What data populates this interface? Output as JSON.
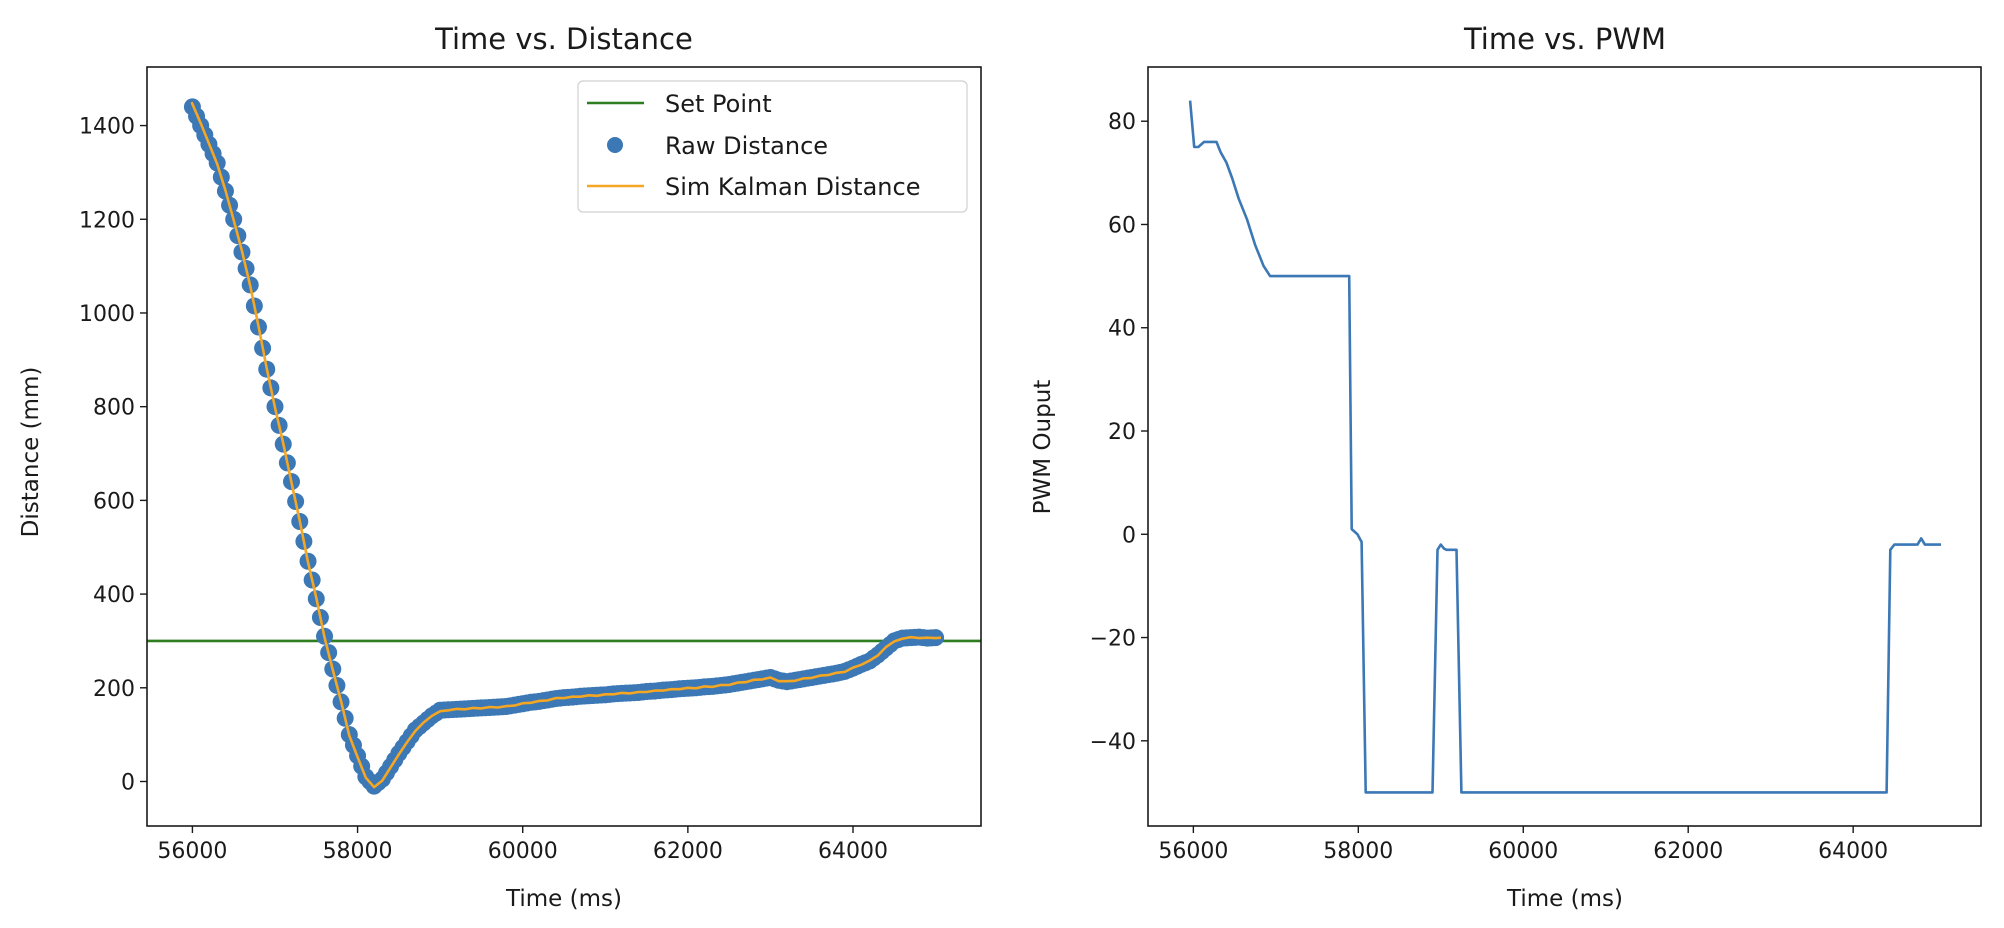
{
  "chart_data": [
    {
      "type": "scatter",
      "title": "Time vs. Distance",
      "xlabel": "Time (ms)",
      "ylabel": "Distance (mm)",
      "xlim": [
        55450,
        65550
      ],
      "ylim": [
        -95,
        1525
      ],
      "xticks": [
        56000,
        58000,
        60000,
        62000,
        64000
      ],
      "yticks": [
        0,
        200,
        400,
        600,
        800,
        1000,
        1200,
        1400
      ],
      "grid": false,
      "legend_position": "top-right",
      "legend": [
        "Set Point",
        "Raw Distance",
        "Sim Kalman Distance"
      ],
      "series": [
        {
          "name": "Set Point",
          "kind": "hline",
          "color": "#2e7d1f",
          "y": 300
        },
        {
          "name": "Raw Distance",
          "kind": "scatter",
          "color": "#3b78b5",
          "x": [
            56000,
            56100,
            56200,
            56300,
            56400,
            56500,
            56600,
            56700,
            56800,
            56900,
            57000,
            57100,
            57200,
            57300,
            57400,
            57500,
            57600,
            57700,
            57800,
            57900,
            58000,
            58100,
            58200,
            58300,
            58400,
            58500,
            58600,
            58700,
            58800,
            58900,
            59000,
            59100,
            59200,
            59300,
            59400,
            59500,
            59600,
            59700,
            59800,
            59900,
            60000,
            60100,
            60200,
            60300,
            60400,
            60500,
            60600,
            60700,
            60800,
            60900,
            61000,
            61100,
            61200,
            61300,
            61400,
            61500,
            61600,
            61700,
            61800,
            61900,
            62000,
            62100,
            62200,
            62300,
            62400,
            62500,
            62600,
            62700,
            62800,
            62900,
            63000,
            63100,
            63200,
            63300,
            63400,
            63500,
            63600,
            63700,
            63800,
            63900,
            64000,
            64100,
            64200,
            64300,
            64400,
            64500,
            64600,
            64700,
            64800,
            64900,
            65000
          ],
          "y": [
            1440,
            1400,
            1360,
            1320,
            1260,
            1200,
            1130,
            1060,
            970,
            880,
            800,
            720,
            640,
            555,
            470,
            390,
            310,
            240,
            170,
            100,
            55,
            10,
            -10,
            5,
            32,
            60,
            85,
            110,
            125,
            140,
            152,
            153,
            154,
            155,
            156,
            157,
            158,
            159,
            160,
            163,
            166,
            169,
            171,
            174,
            177,
            179,
            180,
            182,
            183,
            184,
            185,
            187,
            188,
            189,
            190,
            192,
            193,
            195,
            196,
            198,
            199,
            200,
            202,
            203,
            205,
            207,
            210,
            213,
            216,
            219,
            222,
            216,
            213,
            216,
            219,
            222,
            225,
            228,
            231,
            235,
            242,
            250,
            257,
            270,
            285,
            300,
            306,
            307,
            308,
            306,
            307
          ]
        },
        {
          "name": "Sim Kalman Distance",
          "kind": "line",
          "color": "#f5a623",
          "x": [
            55990,
            56100,
            56200,
            56300,
            56400,
            56500,
            56600,
            56700,
            56800,
            56900,
            57000,
            57100,
            57200,
            57300,
            57400,
            57500,
            57600,
            57700,
            57800,
            57900,
            58000,
            58100,
            58200,
            58300,
            58400,
            58500,
            58600,
            58700,
            58800,
            58900,
            59000,
            59100,
            59200,
            59300,
            59400,
            59500,
            59600,
            59700,
            59800,
            59900,
            60000,
            60100,
            60200,
            60300,
            60400,
            60500,
            60600,
            60700,
            60800,
            60900,
            61000,
            61100,
            61200,
            61300,
            61400,
            61500,
            61600,
            61700,
            61800,
            61900,
            62000,
            62100,
            62200,
            62300,
            62400,
            62500,
            62600,
            62700,
            62800,
            62900,
            63000,
            63100,
            63200,
            63300,
            63400,
            63500,
            63600,
            63700,
            63800,
            63900,
            64000,
            64100,
            64200,
            64300,
            64400,
            64500,
            64600,
            64700,
            64800,
            64900,
            65000,
            65065
          ],
          "y": [
            1450,
            1405,
            1362,
            1318,
            1262,
            1198,
            1132,
            1058,
            972,
            882,
            798,
            722,
            638,
            556,
            468,
            392,
            308,
            238,
            172,
            98,
            52,
            8,
            -12,
            2,
            30,
            58,
            84,
            108,
            126,
            140,
            150,
            152,
            155,
            154,
            157,
            156,
            159,
            158,
            161,
            162,
            167,
            168,
            172,
            173,
            178,
            178,
            181,
            181,
            184,
            183,
            186,
            186,
            189,
            188,
            191,
            191,
            194,
            194,
            197,
            197,
            200,
            199,
            203,
            202,
            206,
            206,
            211,
            212,
            217,
            218,
            222,
            214,
            214,
            215,
            220,
            221,
            226,
            227,
            232,
            234,
            243,
            249,
            258,
            269,
            287,
            299,
            305,
            308,
            306,
            307,
            306,
            307
          ]
        }
      ]
    },
    {
      "type": "line",
      "title": "Time vs. PWM",
      "xlabel": "Time (ms)",
      "ylabel": "PWM Ouput",
      "xlim": [
        55450,
        65550
      ],
      "ylim": [
        -56.5,
        90.5
      ],
      "xticks": [
        56000,
        58000,
        60000,
        62000,
        64000
      ],
      "yticks": [
        -40,
        -20,
        0,
        20,
        40,
        60,
        80
      ],
      "grid": false,
      "series": [
        {
          "name": "PWM",
          "color": "#3b78b5",
          "x": [
            55960,
            56010,
            56060,
            56130,
            56280,
            56330,
            56400,
            56470,
            56550,
            56650,
            56750,
            56850,
            56930,
            57890,
            57920,
            57990,
            58040,
            58090,
            58900,
            58960,
            59000,
            59040,
            59070,
            59190,
            59250,
            64405,
            64450,
            64500,
            64780,
            64825,
            64870,
            65065
          ],
          "y": [
            84,
            75,
            75,
            76,
            76,
            74,
            72,
            69,
            65,
            61,
            56,
            52,
            50,
            50,
            1,
            0,
            -1.5,
            -50,
            -50,
            -3,
            -2,
            -2.8,
            -3,
            -3,
            -50,
            -50,
            -3,
            -2,
            -2,
            -0.8,
            -2,
            -2
          ]
        }
      ]
    }
  ]
}
